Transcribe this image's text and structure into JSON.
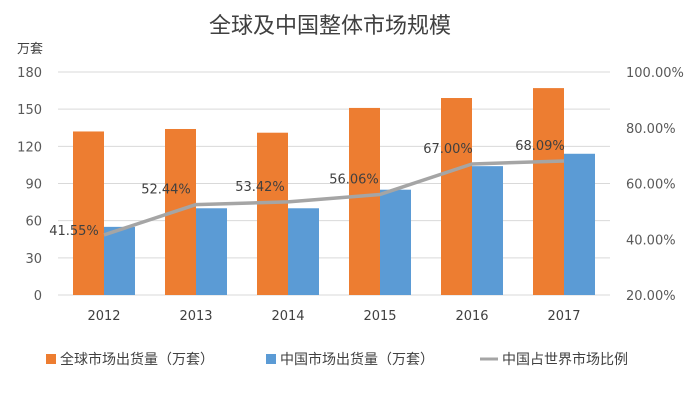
{
  "chart_data": {
    "type": "bar",
    "title": "全球及中国整体市场规模",
    "y_unit_label": "万套",
    "categories": [
      "2012",
      "2013",
      "2014",
      "2015",
      "2016",
      "2017"
    ],
    "series": [
      {
        "name": "全球市场出货量（万套）",
        "type": "bar",
        "axis": "left",
        "color": "#ED7D31",
        "values": [
          132,
          134,
          131,
          151,
          159,
          167
        ]
      },
      {
        "name": "中国市场出货量（万套）",
        "type": "bar",
        "axis": "left",
        "color": "#5B9BD5",
        "values": [
          55,
          70,
          70,
          85,
          104,
          114
        ]
      },
      {
        "name": "中国占世界市场比例",
        "type": "line",
        "axis": "right",
        "color": "#A5A5A5",
        "values": [
          41.55,
          52.44,
          53.42,
          56.06,
          67.0,
          68.09
        ],
        "labels": [
          "41.55%",
          "52.44%",
          "53.42%",
          "56.06%",
          "67.00%",
          "68.09%"
        ]
      }
    ],
    "y_left": {
      "min": 0,
      "max": 180,
      "ticks": [
        "0",
        "30",
        "60",
        "90",
        "120",
        "150",
        "180"
      ]
    },
    "y_right": {
      "min": 20,
      "max": 100,
      "ticks": [
        "20.00%",
        "40.00%",
        "60.00%",
        "80.00%",
        "100.00%"
      ]
    },
    "grid": true,
    "legend_position": "bottom"
  }
}
